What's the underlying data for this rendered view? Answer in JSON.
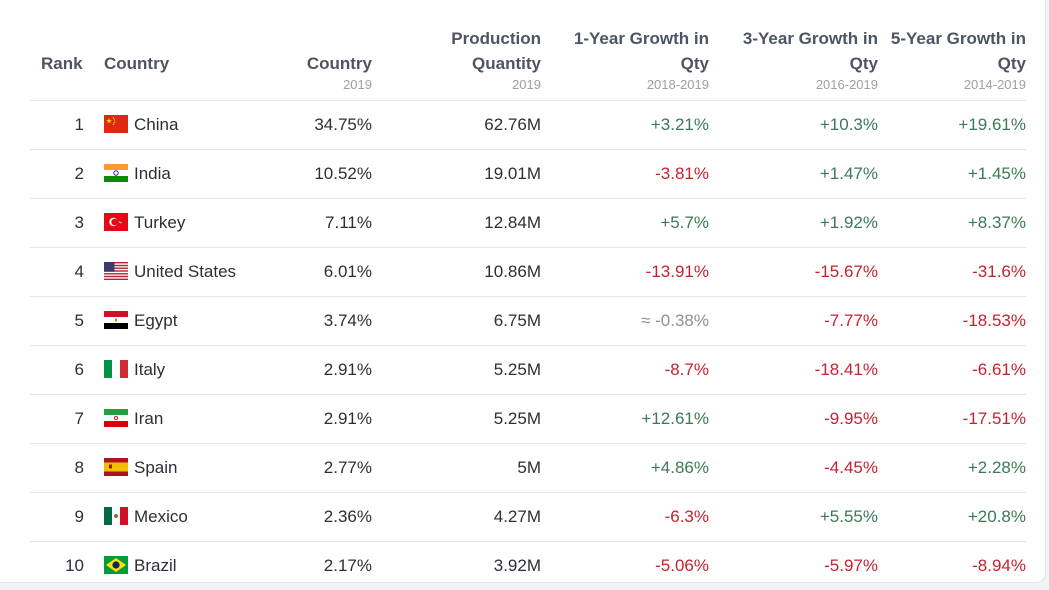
{
  "headers": {
    "rank": "Rank",
    "country": "Country",
    "share": {
      "title": "Country",
      "sub": "2019"
    },
    "quantity": {
      "title_1": "Production",
      "title_2": "Quantity",
      "sub": "2019"
    },
    "growth_1y": {
      "title_1": "1-Year Growth in",
      "title_2": "Qty",
      "sub": "2018-2019"
    },
    "growth_3y": {
      "title_1": "3-Year Growth in",
      "title_2": "Qty",
      "sub": "2016-2019"
    },
    "growth_5y": {
      "title_1": "5-Year Growth in",
      "title_2": "Qty",
      "sub": "2014-2019"
    }
  },
  "colors": {
    "positive": "#3b7a57",
    "negative": "#c4232e",
    "neutral": "#8a919b"
  },
  "rows": [
    {
      "rank": "1",
      "flag": "flag-china-icon",
      "country": "China",
      "share": "34.75%",
      "quantity": "62.76M",
      "g1": "+3.21%",
      "g1_trend": "pos",
      "g3": "+10.3%",
      "g3_trend": "pos",
      "g5": "+19.61%",
      "g5_trend": "pos"
    },
    {
      "rank": "2",
      "flag": "flag-india-icon",
      "country": "India",
      "share": "10.52%",
      "quantity": "19.01M",
      "g1": "-3.81%",
      "g1_trend": "neg",
      "g3": "+1.47%",
      "g3_trend": "pos",
      "g5": "+1.45%",
      "g5_trend": "pos"
    },
    {
      "rank": "3",
      "flag": "flag-turkey-icon",
      "country": "Turkey",
      "share": "7.11%",
      "quantity": "12.84M",
      "g1": "+5.7%",
      "g1_trend": "pos",
      "g3": "+1.92%",
      "g3_trend": "pos",
      "g5": "+8.37%",
      "g5_trend": "pos"
    },
    {
      "rank": "4",
      "flag": "flag-united-states-icon",
      "country": "United States",
      "share": "6.01%",
      "quantity": "10.86M",
      "g1": "-13.91%",
      "g1_trend": "neg",
      "g3": "-15.67%",
      "g3_trend": "neg",
      "g5": "-31.6%",
      "g5_trend": "neg"
    },
    {
      "rank": "5",
      "flag": "flag-egypt-icon",
      "country": "Egypt",
      "share": "3.74%",
      "quantity": "6.75M",
      "g1": "≈ -0.38%",
      "g1_trend": "flat",
      "g3": "-7.77%",
      "g3_trend": "neg",
      "g5": "-18.53%",
      "g5_trend": "neg"
    },
    {
      "rank": "6",
      "flag": "flag-italy-icon",
      "country": "Italy",
      "share": "2.91%",
      "quantity": "5.25M",
      "g1": "-8.7%",
      "g1_trend": "neg",
      "g3": "-18.41%",
      "g3_trend": "neg",
      "g5": "-6.61%",
      "g5_trend": "neg"
    },
    {
      "rank": "7",
      "flag": "flag-iran-icon",
      "country": "Iran",
      "share": "2.91%",
      "quantity": "5.25M",
      "g1": "+12.61%",
      "g1_trend": "pos",
      "g3": "-9.95%",
      "g3_trend": "neg",
      "g5": "-17.51%",
      "g5_trend": "neg"
    },
    {
      "rank": "8",
      "flag": "flag-spain-icon",
      "country": "Spain",
      "share": "2.77%",
      "quantity": "5M",
      "g1": "+4.86%",
      "g1_trend": "pos",
      "g3": "-4.45%",
      "g3_trend": "neg",
      "g5": "+2.28%",
      "g5_trend": "pos"
    },
    {
      "rank": "9",
      "flag": "flag-mexico-icon",
      "country": "Mexico",
      "share": "2.36%",
      "quantity": "4.27M",
      "g1": "-6.3%",
      "g1_trend": "neg",
      "g3": "+5.55%",
      "g3_trend": "pos",
      "g5": "+20.8%",
      "g5_trend": "pos"
    },
    {
      "rank": "10",
      "flag": "flag-brazil-icon",
      "country": "Brazil",
      "share": "2.17%",
      "quantity": "3.92M",
      "g1": "-5.06%",
      "g1_trend": "neg",
      "g3": "-5.97%",
      "g3_trend": "neg",
      "g5": "-8.94%",
      "g5_trend": "neg"
    }
  ]
}
